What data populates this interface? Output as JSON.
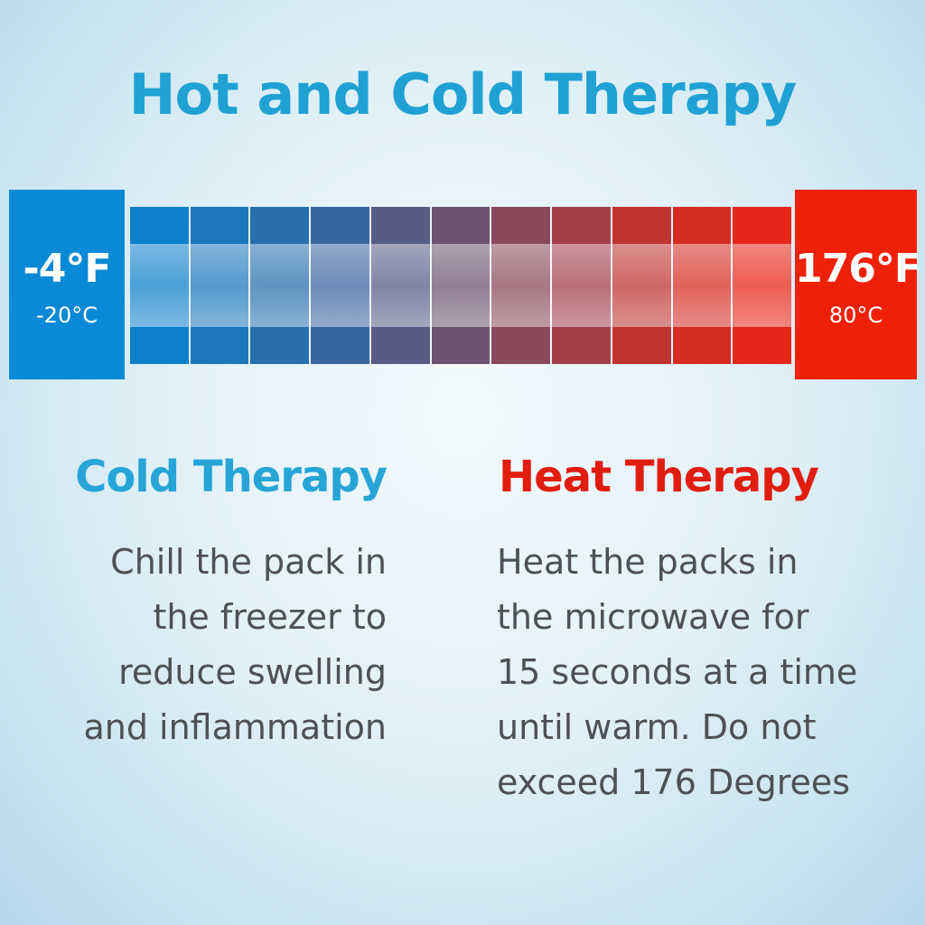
{
  "title": "Hot and Cold Therapy",
  "scale": {
    "cold_f": "-4°F",
    "cold_c": "-20°C",
    "hot_f": "176°F",
    "hot_c": "80°C",
    "segment_colors": [
      "#0d80cc",
      "#1b78bd",
      "#2870ad",
      "#3a66a0",
      "#575c86",
      "#6d5272",
      "#8a4a5b",
      "#a2404a",
      "#bf3430",
      "#d52c22",
      "#e8261a"
    ]
  },
  "cold": {
    "heading": "Cold Therapy",
    "lines": [
      "Chill the pack in",
      "the freezer to",
      "reduce swelling",
      "and inflammation"
    ]
  },
  "heat": {
    "heading": "Heat Therapy",
    "lines": [
      "Heat the packs in",
      "the microwave for",
      "15 seconds at a time",
      "until warm. Do not",
      "exceed 176 Degrees"
    ]
  }
}
